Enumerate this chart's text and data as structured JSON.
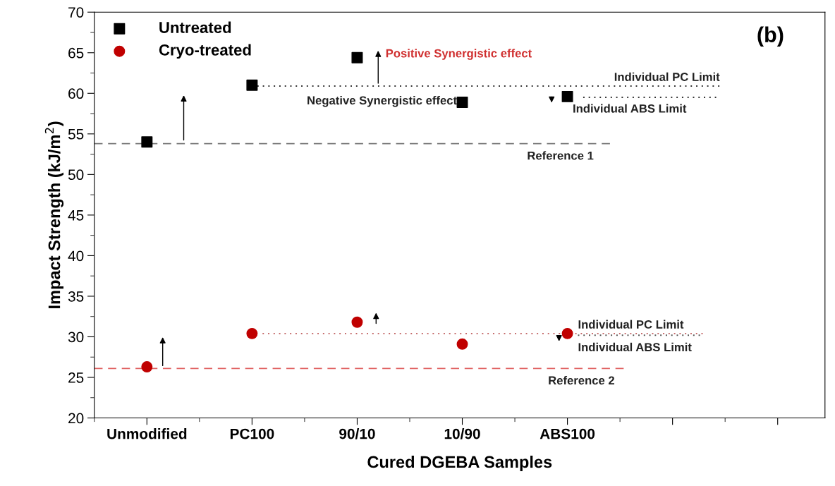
{
  "chart_data": {
    "type": "scatter",
    "xlabel": "Cured DGEBA Samples",
    "ylabel": "Impact Strength (kJ/m$^{2}$)",
    "categories": [
      "Unmodified",
      "PC100",
      "90/10",
      "10/90",
      "ABS100",
      null,
      null
    ],
    "series": [
      {
        "name": "Untreated",
        "color": "#000000",
        "marker": "square",
        "values": [
          54.0,
          61.0,
          64.4,
          58.9,
          59.6,
          null,
          null
        ]
      },
      {
        "name": "Cryo-treated",
        "color": "#c00000",
        "marker": "circle",
        "values": [
          26.3,
          30.4,
          31.8,
          29.1,
          30.4,
          null,
          null
        ]
      }
    ],
    "ylim": [
      20,
      70
    ],
    "yticks": [
      20,
      25,
      30,
      35,
      40,
      45,
      50,
      55,
      60,
      65,
      70
    ],
    "ref_lines": [
      {
        "axis": "y",
        "value": 53.8,
        "label": "Reference 1",
        "color": "#777777",
        "line_style": "dashed"
      },
      {
        "axis": "y",
        "value": 60.9,
        "label": "Individual PC Limit",
        "color": "#333333",
        "line_style": "dotted"
      },
      {
        "axis": "y",
        "value": 59.5,
        "label": "Individual ABS Limit",
        "color": "#333333",
        "line_style": "dotted"
      },
      {
        "axis": "y",
        "value": 26.1,
        "label": "Reference 2",
        "color": "#e06060",
        "line_style": "dashed"
      },
      {
        "axis": "y",
        "value": 30.4,
        "label": "Individual PC Limit",
        "color": "#c06060",
        "line_style": "dotted"
      },
      {
        "axis": "y",
        "value": 30.2,
        "label": "Individual ABS Limit",
        "color": "#555555",
        "line_style": "dotted"
      }
    ],
    "annotations": [
      {
        "text": "Positive Synergistic effect",
        "x": "90/10",
        "y": 64.4
      },
      "Negative Synergistic effect",
      "(b)"
    ],
    "legend": "top left",
    "grid": false
  }
}
